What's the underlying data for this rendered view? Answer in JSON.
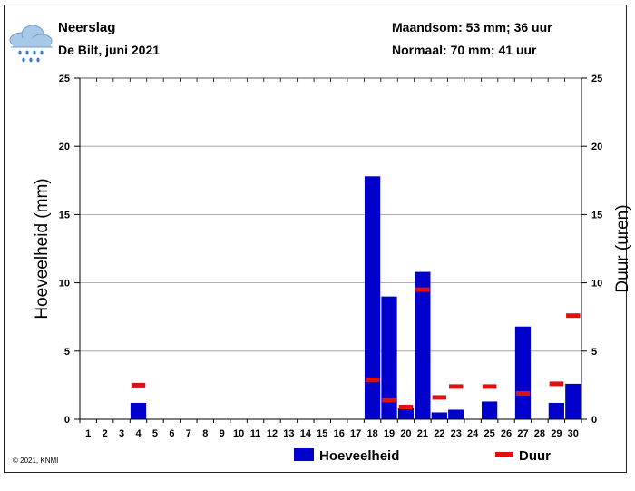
{
  "header": {
    "icon": "rain-cloud-icon",
    "title": "Neerslag",
    "location": "De Bilt, juni 2021",
    "month_total": "Maandsom: 53 mm; 36 uur",
    "normal": "Normaal: 70 mm; 41 uur"
  },
  "copyright": "© 2021, KNMI",
  "colors": {
    "bar": "#0000cc",
    "duration": "#e01010",
    "grid": "#999999"
  },
  "chart_data": {
    "type": "bar",
    "ylabel": "Hoeveelheid (mm)",
    "y2label": "Duur (uren)",
    "ylim": [
      0,
      25
    ],
    "y2lim": [
      0,
      25
    ],
    "yticks": [
      0,
      5,
      10,
      15,
      20,
      25
    ],
    "grid": true,
    "legend_position": "bottom",
    "categories": [
      "1",
      "2",
      "3",
      "4",
      "5",
      "6",
      "7",
      "8",
      "9",
      "10",
      "11",
      "12",
      "13",
      "14",
      "15",
      "16",
      "17",
      "18",
      "19",
      "20",
      "21",
      "22",
      "23",
      "24",
      "25",
      "26",
      "27",
      "28",
      "29",
      "30"
    ],
    "series": [
      {
        "name": "Hoeveelheid",
        "kind": "bar",
        "values": [
          0,
          0,
          0,
          1.2,
          0,
          0,
          0,
          0,
          0,
          0,
          0,
          0,
          0,
          0,
          0,
          0,
          0,
          17.8,
          9.0,
          0.8,
          10.8,
          0.5,
          0.7,
          0,
          1.3,
          0,
          6.8,
          0,
          1.2,
          2.6
        ]
      },
      {
        "name": "Duur",
        "kind": "marker",
        "values": [
          null,
          null,
          null,
          2.5,
          null,
          null,
          null,
          null,
          null,
          null,
          null,
          null,
          null,
          null,
          null,
          null,
          null,
          2.9,
          1.4,
          0.9,
          9.5,
          1.6,
          2.4,
          null,
          2.4,
          null,
          1.9,
          null,
          2.6,
          7.6
        ]
      }
    ]
  }
}
